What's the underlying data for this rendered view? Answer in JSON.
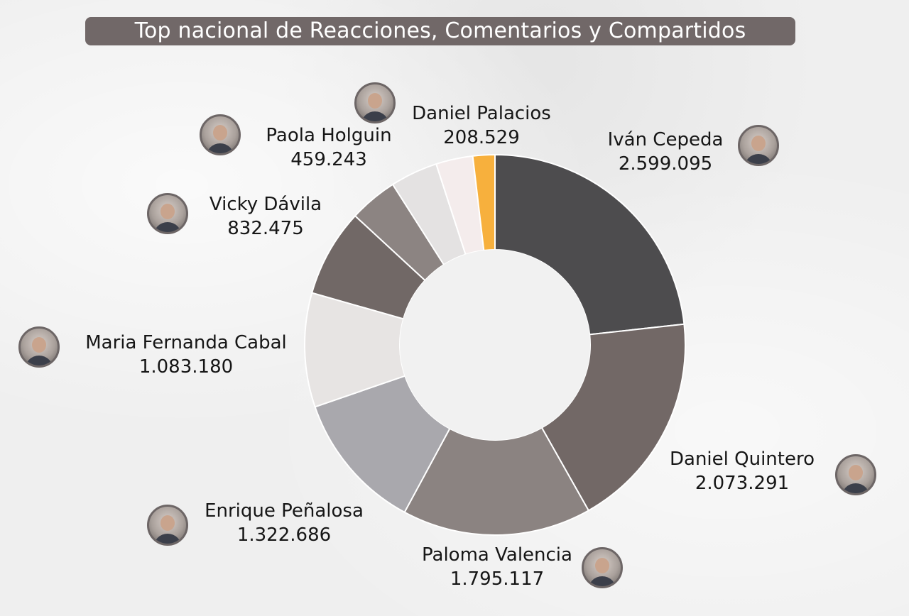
{
  "title": "Top nacional de Reacciones, Comentarios y Compartidos",
  "chart_data": {
    "type": "pie",
    "title": "Top nacional de Reacciones, Comentarios y Compartidos",
    "categories": [
      "Iván Cepeda",
      "Daniel Quintero",
      "Paloma Valencia",
      "Enrique Peñalosa",
      "Maria Fernanda Cabal",
      "Vicky Dávila",
      "Paola Holguin",
      "",
      "",
      "Daniel Palacios"
    ],
    "values": [
      2599095,
      2073291,
      1795117,
      1322686,
      1083180,
      832475,
      459243,
      450000,
      350000,
      208529
    ],
    "value_labels": [
      "2.599.095",
      "2.073.291",
      "1.795.117",
      "1.322.686",
      "1.083.180",
      "832.475",
      "459.243",
      "",
      "",
      "208.529"
    ],
    "colors": [
      "#4d4c4e",
      "#726866",
      "#8b8381",
      "#a9a8ad",
      "#e7e4e3",
      "#716866",
      "#8c8482",
      "#e4e2e2",
      "#f4ecec",
      "#f7b03d"
    ],
    "donut": true,
    "legend": "none"
  }
}
